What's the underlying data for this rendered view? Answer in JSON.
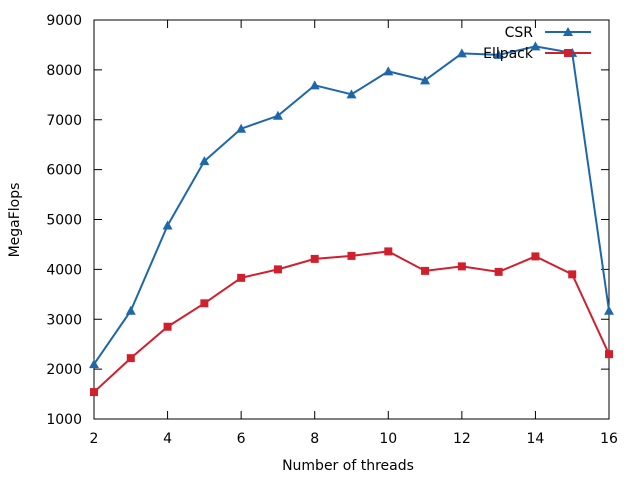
{
  "chart_data": {
    "type": "line",
    "title": "",
    "xlabel": "Number of threads",
    "ylabel": "MegaFlops",
    "xlim": [
      2,
      16
    ],
    "ylim": [
      1000,
      9000
    ],
    "x_ticks": [
      2,
      4,
      6,
      8,
      10,
      12,
      14,
      16
    ],
    "y_ticks": [
      1000,
      2000,
      3000,
      4000,
      5000,
      6000,
      7000,
      8000,
      9000
    ],
    "grid": false,
    "legend_position": "top-right",
    "x": [
      2,
      3,
      4,
      5,
      6,
      7,
      8,
      9,
      10,
      11,
      12,
      13,
      14,
      15,
      16
    ],
    "series": [
      {
        "name": "CSR",
        "color": "#1f67a8",
        "marker": "triangle",
        "values": [
          2100,
          3170,
          4880,
          6170,
          6820,
          7080,
          7690,
          7510,
          7970,
          7790,
          8330,
          8300,
          8470,
          8340,
          3170
        ]
      },
      {
        "name": "Ellpack",
        "color": "#d0202e",
        "marker": "square",
        "values": [
          1540,
          2220,
          2850,
          3320,
          3830,
          4000,
          4210,
          4270,
          4360,
          3970,
          4060,
          3950,
          4260,
          3900,
          2300
        ]
      }
    ]
  }
}
